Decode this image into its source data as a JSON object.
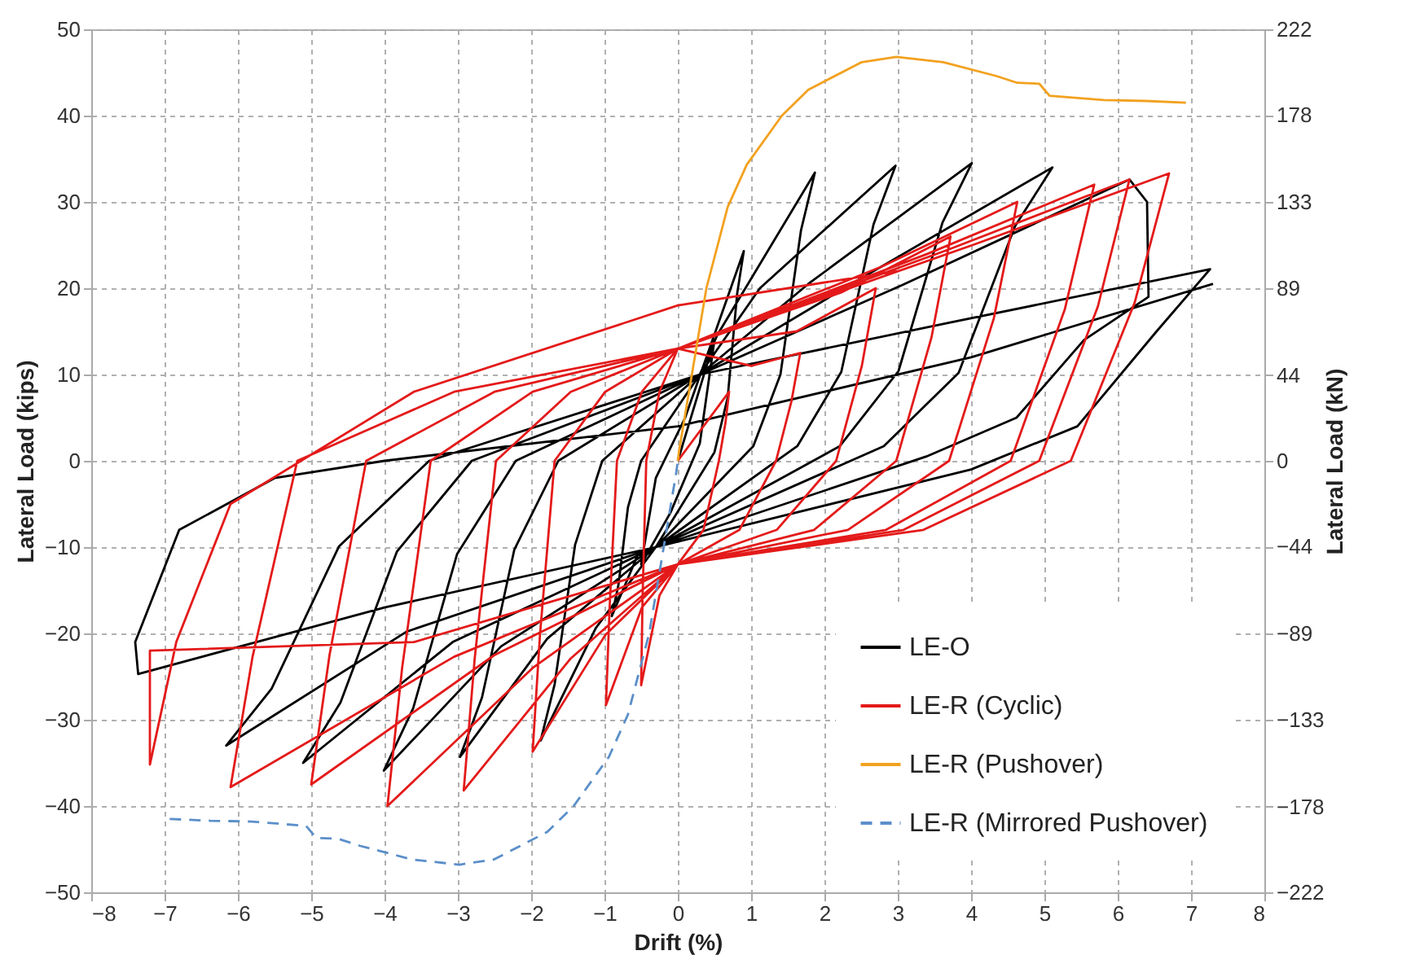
{
  "chart_data": {
    "type": "line",
    "xlabel": "Drift (%)",
    "ylabel": "Lateral Load (kips)",
    "y2label": "Lateral Load (kN)",
    "xlim": [
      -8,
      8
    ],
    "xticks": [
      -8,
      -7,
      -6,
      -5,
      -4,
      -3,
      -2,
      -1,
      0,
      1,
      2,
      3,
      4,
      5,
      6,
      7,
      8
    ],
    "ylim": [
      -50,
      50
    ],
    "yticks": [
      -50,
      -40,
      -30,
      -20,
      -10,
      0,
      10,
      20,
      30,
      40,
      50
    ],
    "y2lim": [
      -222,
      222
    ],
    "y2ticks": [
      -222,
      -178,
      -133,
      -89,
      -44,
      0,
      44,
      89,
      133,
      178,
      222
    ],
    "grid": true,
    "legend": "bottom right",
    "series": [
      {
        "name": "LE-O",
        "color": "#000000",
        "line_style": "solid",
        "x": [
          0,
          0.5,
          0.4,
          0.3,
          -0.1,
          -0.5,
          -0.4,
          -0.3,
          0.1,
          0.9,
          0.81,
          0.68,
          0.5,
          -0.3,
          -0.54,
          -0.9,
          -0.81,
          -0.68,
          -0.5,
          0.3,
          0.54,
          1.87,
          1.68,
          1.4,
          1.03,
          -0.3,
          -1.12,
          -1.87,
          -1.68,
          -1.4,
          -1.03,
          0.3,
          1.12,
          2.97,
          2.67,
          2.23,
          1.63,
          -0.3,
          -1.78,
          -2.97,
          -2.67,
          -2.23,
          -1.63,
          0.3,
          1.78,
          4.01,
          3.61,
          3.01,
          2.21,
          -0.3,
          -2.41,
          -4.01,
          -3.61,
          -3.01,
          -2.21,
          0.3,
          2.41,
          5.11,
          4.6,
          3.83,
          2.81,
          -0.3,
          -3.07,
          -5.11,
          -4.6,
          -3.83,
          -2.81,
          0.3,
          3.07,
          6.16,
          6.4,
          6.42,
          5.54,
          4.62,
          3.39,
          -0.3,
          -3.7,
          -6.16,
          -5.54,
          -4.62,
          -3.39,
          0.3,
          3.7,
          7.26,
          6.53,
          5.45,
          4,
          -0.3,
          -4,
          -7.36,
          -7.4,
          -6.8,
          -5.5,
          -4,
          0,
          4,
          7.3
        ],
        "values": [
          0,
          14,
          8,
          2,
          -6,
          -12,
          -7,
          -2,
          5,
          24.3,
          19.4,
          7.3,
          1,
          -10,
          -10.8,
          -18,
          -14.4,
          -5.4,
          0,
          10,
          14.6,
          33.4,
          26.7,
          10,
          1.7,
          -10,
          -19.4,
          -32.4,
          -25.9,
          -9.7,
          0,
          10,
          20,
          34.2,
          27.4,
          10.3,
          1.7,
          -10,
          -20.6,
          -34.3,
          -27.4,
          -10.3,
          0,
          10,
          20.5,
          34.5,
          27.6,
          10.4,
          1.7,
          -10,
          -21.5,
          -35.9,
          -28.7,
          -10.8,
          0,
          10,
          20.7,
          34,
          27.2,
          10.2,
          1.7,
          -10,
          -21,
          -35,
          -28,
          -10.5,
          0,
          10,
          20.4,
          32.6,
          30,
          19,
          14,
          5,
          0.5,
          -10,
          -19.8,
          -33,
          -26.4,
          -9.9,
          0,
          10,
          16,
          22.2,
          15,
          4,
          -1,
          -10,
          -17,
          -24.7,
          -21,
          -8,
          -2,
          0,
          4,
          12,
          20.5
        ]
      },
      {
        "name": "LE-R (Cyclic)",
        "color": "#e41a1a",
        "line_style": "solid",
        "x": [
          0,
          0.7,
          0.65,
          0.56,
          0.35,
          0,
          -0.25,
          -0.5,
          -0.48,
          -0.43,
          -0.25,
          0,
          1,
          1.67,
          1.55,
          1.34,
          0.84,
          0,
          -0.49,
          -0.98,
          -0.93,
          -0.83,
          -0.49,
          0,
          1.62,
          2.7,
          2.51,
          2.16,
          1.35,
          0,
          -0.99,
          -1.98,
          -1.88,
          -1.68,
          -0.99,
          0,
          2.23,
          3.72,
          3.46,
          2.98,
          1.86,
          0,
          -1.46,
          -2.92,
          -2.77,
          -2.48,
          -1.46,
          0,
          2.78,
          4.63,
          4.31,
          3.7,
          2.32,
          0,
          -1.98,
          -3.96,
          -3.76,
          -3.37,
          -1.98,
          0,
          3.41,
          5.68,
          5.28,
          4.54,
          2.84,
          0,
          -2.5,
          -5,
          -4.75,
          -4.25,
          -2.5,
          0,
          3.7,
          6.16,
          5.73,
          4.93,
          3.08,
          0,
          -3.05,
          -6.1,
          -5.8,
          -5.19,
          -3.05,
          0,
          4.02,
          6.7,
          6.23,
          5.36,
          3.35,
          0,
          -3.6,
          -7.2,
          -7.2,
          -6.84,
          -6.1,
          -3.6,
          0,
          3
        ],
        "values": [
          0,
          8,
          4.4,
          0,
          -8,
          -12,
          -15.6,
          -26,
          -15.6,
          0,
          8,
          13,
          11,
          12.5,
          6.9,
          0,
          -8,
          -12,
          -17,
          -28.3,
          -17,
          0,
          8,
          13,
          15,
          20,
          11,
          0,
          -8,
          -12,
          -20.2,
          -33.7,
          -20.2,
          0,
          8,
          13,
          19.5,
          26,
          14.3,
          0,
          -8,
          -12,
          -22.9,
          -38.2,
          -22.9,
          0,
          8,
          13,
          22.5,
          30,
          16.5,
          0,
          -8,
          -12,
          -24,
          -40,
          -24,
          0,
          8,
          13,
          24,
          32,
          17.6,
          0,
          -8,
          -12,
          -22.5,
          -37.5,
          -22.5,
          0,
          8,
          13,
          24.5,
          32.6,
          17.9,
          0,
          -8,
          -12,
          -22.7,
          -37.8,
          -22.7,
          0,
          8,
          13,
          25,
          33.3,
          18.3,
          0,
          -8,
          -12,
          -21,
          -22,
          -35.2,
          -21,
          -5,
          8,
          18,
          22
        ]
      },
      {
        "name": "LE-R (Pushover)",
        "color": "#f2a11f",
        "line_style": "solid",
        "x": [
          0,
          0.02,
          0.39,
          0.68,
          0.94,
          1.42,
          1.78,
          2.51,
          2.98,
          3.62,
          4.34,
          4.63,
          4.93,
          5.07,
          5.81,
          6.38,
          6.93
        ],
        "values": [
          0,
          1.3,
          20,
          29.4,
          34.3,
          40,
          43,
          46.2,
          46.8,
          46.2,
          44.6,
          43.8,
          43.7,
          42.3,
          41.8,
          41.7,
          41.5
        ]
      },
      {
        "name": "LE-R (Mirrored Pushover)",
        "color": "#5b8fc9",
        "line_style": "dashed",
        "x": [
          -6.93,
          -6.38,
          -5.81,
          -5.07,
          -4.93,
          -4.63,
          -4.34,
          -3.62,
          -2.98,
          -2.51,
          -1.78,
          -1.42,
          -0.94,
          -0.68,
          -0.39,
          -0.02,
          0
        ],
        "values": [
          -41.5,
          -41.7,
          -41.8,
          -42.3,
          -43.7,
          -43.8,
          -44.6,
          -46.2,
          -46.8,
          -46.2,
          -43,
          -40,
          -34.3,
          -29.4,
          -20,
          -1.3,
          0
        ]
      }
    ]
  }
}
